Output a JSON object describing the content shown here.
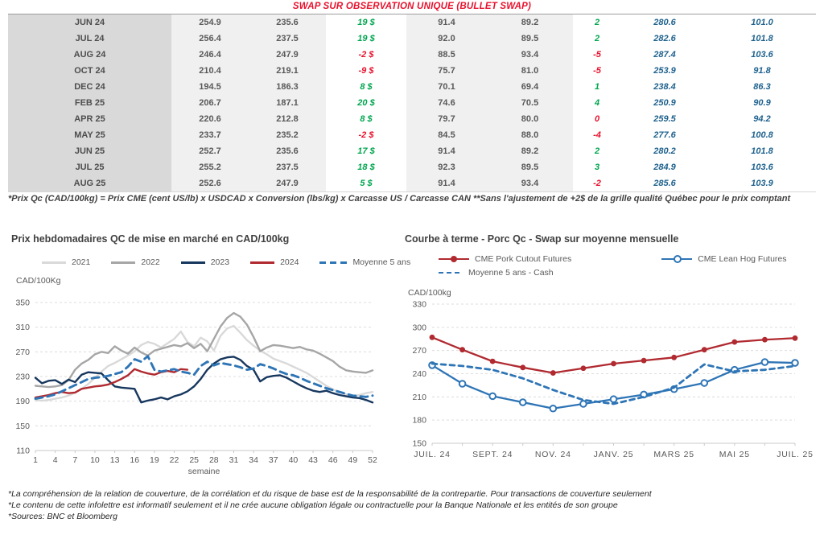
{
  "header": {
    "title": "SWAP SUR OBSERVATION UNIQUE (BULLET SWAP)",
    "title_color": "#e8112d"
  },
  "colors": {
    "positive": "#00a64f",
    "negative": "#e8112d",
    "blue_value": "#1f628e",
    "red_series": "#b02a30",
    "blue_series": "#2e75b6",
    "navy_series": "#17375e",
    "gray_series": "#a6a6a6",
    "lightgray_series": "#d9d9d9"
  },
  "table": {
    "rows": [
      {
        "month": "JUN 24",
        "v1": "254.9",
        "v2": "235.6",
        "d1": "19 $",
        "d1n": false,
        "v3": "91.4",
        "v4": "89.2",
        "d2": "2",
        "d2n": false,
        "b1": "280.6",
        "b2": "101.0"
      },
      {
        "month": "JUL 24",
        "v1": "256.4",
        "v2": "237.5",
        "d1": "19 $",
        "d1n": false,
        "v3": "92.0",
        "v4": "89.5",
        "d2": "2",
        "d2n": false,
        "b1": "282.6",
        "b2": "101.8"
      },
      {
        "month": "AUG 24",
        "v1": "246.4",
        "v2": "247.9",
        "d1": "-2 $",
        "d1n": true,
        "v3": "88.5",
        "v4": "93.4",
        "d2": "-5",
        "d2n": true,
        "b1": "287.4",
        "b2": "103.6"
      },
      {
        "month": "OCT 24",
        "v1": "210.4",
        "v2": "219.1",
        "d1": "-9 $",
        "d1n": true,
        "v3": "75.7",
        "v4": "81.0",
        "d2": "-5",
        "d2n": true,
        "b1": "253.9",
        "b2": "91.8"
      },
      {
        "month": "DEC 24",
        "v1": "194.5",
        "v2": "186.3",
        "d1": "8 $",
        "d1n": false,
        "v3": "70.1",
        "v4": "69.4",
        "d2": "1",
        "d2n": false,
        "b1": "238.4",
        "b2": "86.3"
      },
      {
        "month": "FEB 25",
        "v1": "206.7",
        "v2": "187.1",
        "d1": "20 $",
        "d1n": false,
        "v3": "74.6",
        "v4": "70.5",
        "d2": "4",
        "d2n": false,
        "b1": "250.9",
        "b2": "90.9"
      },
      {
        "month": "APR 25",
        "v1": "220.6",
        "v2": "212.8",
        "d1": "8 $",
        "d1n": false,
        "v3": "79.7",
        "v4": "80.0",
        "d2": "0",
        "d2n": true,
        "b1": "259.5",
        "b2": "94.2"
      },
      {
        "month": "MAY 25",
        "v1": "233.7",
        "v2": "235.2",
        "d1": "-2 $",
        "d1n": true,
        "v3": "84.5",
        "v4": "88.0",
        "d2": "-4",
        "d2n": true,
        "b1": "277.6",
        "b2": "100.8"
      },
      {
        "month": "JUN 25",
        "v1": "252.7",
        "v2": "235.6",
        "d1": "17 $",
        "d1n": false,
        "v3": "91.4",
        "v4": "89.2",
        "d2": "2",
        "d2n": false,
        "b1": "280.2",
        "b2": "101.8"
      },
      {
        "month": "JUL 25",
        "v1": "255.2",
        "v2": "237.5",
        "d1": "18 $",
        "d1n": false,
        "v3": "92.3",
        "v4": "89.5",
        "d2": "3",
        "d2n": false,
        "b1": "284.9",
        "b2": "103.6"
      },
      {
        "month": "AUG 25",
        "v1": "252.6",
        "v2": "247.9",
        "d1": "5 $",
        "d1n": false,
        "v3": "91.4",
        "v4": "93.4",
        "d2": "-2",
        "d2n": true,
        "b1": "285.6",
        "b2": "103.9"
      }
    ]
  },
  "table_note": "*Prix Qc (CAD/100kg) = Prix CME (cent US/lb) x USDCAD x Conversion (lbs/kg) x Carcasse US / Carcasse CAN **Sans l'ajustement de +2$ de la grille qualité Québec pour le prix comptant",
  "footer_notes": [
    "*La compréhension de la relation de couverture, de la corrélation et du risque de base est de la responsabilité de la contrepartie. Pour transactions de couverture seulement",
    "*Le contenu de cette infolettre est informatif seulement et il ne crée aucune obligation légale ou contractuelle pour la Banque Nationale et les entités de son groupe",
    "*Sources: BNC et Bloomberg"
  ],
  "chart_data": [
    {
      "type": "line",
      "title": "Prix hebdomadaires QC de mise en marché en CAD/100kg",
      "ylabel": "CAD/100Kg",
      "xlabel": "semaine",
      "ylim": [
        110,
        350
      ],
      "yticks": [
        110,
        150,
        190,
        230,
        270,
        310,
        350
      ],
      "xticks": [
        1,
        4,
        7,
        10,
        13,
        16,
        19,
        22,
        25,
        28,
        31,
        34,
        37,
        40,
        43,
        46,
        49,
        52
      ],
      "x_range": [
        1,
        52
      ],
      "grid": true,
      "legend_position": "top",
      "series": [
        {
          "name": "2021",
          "color": "#d9d9d9",
          "style": "solid",
          "values": [
            192,
            191,
            192,
            194,
            196,
            199,
            204,
            210,
            218,
            228,
            238,
            247,
            252,
            258,
            264,
            271,
            281,
            286,
            283,
            277,
            284,
            291,
            303,
            286,
            279,
            293,
            287,
            272,
            296,
            308,
            312,
            301,
            289,
            280,
            272,
            266,
            259,
            255,
            251,
            246,
            241,
            236,
            229,
            222,
            215,
            209,
            205,
            201,
            199,
            200,
            203,
            205
          ]
        },
        {
          "name": "2022",
          "color": "#a6a6a6",
          "style": "solid",
          "values": [
            215,
            214,
            213,
            214,
            216,
            224,
            241,
            251,
            257,
            266,
            270,
            268,
            279,
            272,
            267,
            277,
            269,
            264,
            272,
            275,
            278,
            281,
            279,
            284,
            276,
            283,
            271,
            291,
            311,
            325,
            333,
            327,
            314,
            294,
            271,
            277,
            281,
            280,
            278,
            276,
            278,
            274,
            272,
            267,
            261,
            255,
            246,
            240,
            238,
            237,
            236,
            240
          ]
        },
        {
          "name": "2023",
          "color": "#17375e",
          "style": "solid",
          "values": [
            228,
            219,
            223,
            224,
            218,
            225,
            221,
            233,
            237,
            236,
            235,
            224,
            214,
            212,
            211,
            210,
            188,
            191,
            193,
            196,
            193,
            198,
            201,
            206,
            214,
            226,
            241,
            251,
            258,
            261,
            262,
            257,
            247,
            241,
            222,
            229,
            231,
            232,
            228,
            222,
            216,
            211,
            207,
            205,
            207,
            203,
            200,
            198,
            196,
            195,
            192,
            188
          ]
        },
        {
          "name": "2024",
          "color": "#b02a30",
          "style": "solid",
          "values": [
            196,
            198,
            200,
            203,
            205,
            203,
            204,
            210,
            212,
            214,
            215,
            217,
            221,
            226,
            232,
            242,
            238,
            235,
            233,
            237,
            239,
            237,
            242,
            241,
            null,
            null,
            null,
            null,
            null,
            null,
            null,
            null,
            null,
            null,
            null,
            null,
            null,
            null,
            null,
            null,
            null,
            null,
            null,
            null,
            null,
            null,
            null,
            null,
            null,
            null,
            null,
            null
          ]
        },
        {
          "name": "Moyenne 5 ans",
          "color": "#2e75b6",
          "style": "dashed",
          "values": [
            194,
            196,
            198,
            201,
            206,
            211,
            216,
            221,
            226,
            228,
            229,
            231,
            234,
            237,
            246,
            258,
            254,
            263,
            241,
            238,
            240,
            242,
            238,
            236,
            233,
            247,
            254,
            248,
            252,
            250,
            248,
            245,
            241,
            243,
            250,
            247,
            243,
            238,
            234,
            232,
            228,
            223,
            219,
            215,
            211,
            208,
            205,
            202,
            199,
            198,
            197,
            199
          ]
        }
      ]
    },
    {
      "type": "line",
      "title": "Courbe à terme - Porc Qc - Swap sur moyenne mensuelle",
      "ylabel": "CAD/100kg",
      "xlabel": "",
      "ylim": [
        150,
        330
      ],
      "yticks": [
        150,
        180,
        210,
        240,
        270,
        300,
        330
      ],
      "x_tick_labels": [
        "JUIL. 24",
        "SEPT. 24",
        "NOV. 24",
        "JANV. 25",
        "MARS 25",
        "MAI 25",
        "JUIL. 25"
      ],
      "n_points": 13,
      "grid": true,
      "legend_position": "top",
      "series": [
        {
          "name": "CME Pork Cutout Futures",
          "color": "#b02a30",
          "style": "solid",
          "marker": "filled",
          "values": [
            287,
            271,
            256,
            248,
            241,
            247,
            253,
            257,
            261,
            271,
            281,
            284,
            286
          ]
        },
        {
          "name": "CME Lean Hog Futures",
          "color": "#2e75b6",
          "style": "solid",
          "marker": "open",
          "values": [
            251,
            227,
            211,
            203,
            195,
            201,
            207,
            213,
            220,
            228,
            245,
            255,
            254
          ]
        },
        {
          "name": "Moyenne 5 ans - Cash",
          "color": "#2e75b6",
          "style": "dashed",
          "marker": "none",
          "values": [
            253,
            250,
            245,
            234,
            219,
            206,
            201,
            210,
            222,
            252,
            243,
            245,
            250
          ]
        }
      ]
    }
  ]
}
